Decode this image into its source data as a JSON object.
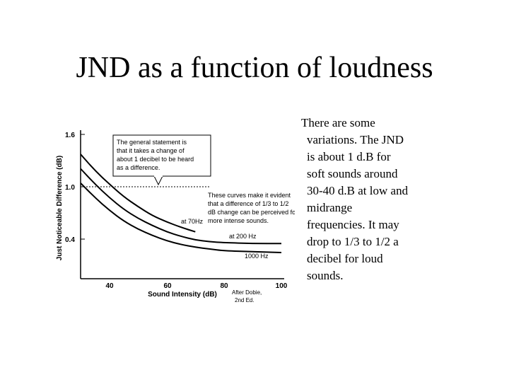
{
  "slide": {
    "title": "JND as a function of loudness",
    "body_lines": [
      "There are some",
      "variations. The JND",
      "is about 1 d.B for",
      "soft sounds around",
      "30-40 d.B at low and",
      "midrange",
      "frequencies. It may",
      "drop to 1/3 to 1/2 a",
      "decibel for loud",
      "sounds."
    ]
  },
  "chart_data": {
    "type": "line",
    "xlabel": "Sound Intensity (dB)",
    "ylabel": "Just Noticeable Difference (dB)",
    "xlim": [
      30,
      100
    ],
    "ylim": [
      0,
      1.6
    ],
    "xticks": [
      "40",
      "60",
      "80",
      "100"
    ],
    "yticks": [
      "1.6",
      "1.0",
      "0.4"
    ],
    "grid": false,
    "source": [
      "After Dobie,",
      "2nd Ed."
    ],
    "series": [
      {
        "name": "at 70Hz",
        "x": [
          30,
          35,
          40,
          45,
          50,
          55,
          60,
          65,
          70
        ],
        "y": [
          1.38,
          1.2,
          1.05,
          0.91,
          0.8,
          0.7,
          0.63,
          0.57,
          0.52
        ]
      },
      {
        "name": "at 200 Hz",
        "x": [
          30,
          35,
          40,
          45,
          50,
          55,
          60,
          65,
          70,
          75,
          80,
          90,
          100
        ],
        "y": [
          1.22,
          1.05,
          0.9,
          0.77,
          0.67,
          0.59,
          0.52,
          0.47,
          0.43,
          0.41,
          0.4,
          0.39,
          0.39
        ]
      },
      {
        "name": "1000 Hz",
        "x": [
          30,
          35,
          40,
          45,
          50,
          55,
          60,
          65,
          70,
          75,
          80,
          90,
          100
        ],
        "y": [
          1.06,
          0.9,
          0.76,
          0.64,
          0.55,
          0.48,
          0.42,
          0.38,
          0.35,
          0.33,
          0.31,
          0.3,
          0.29
        ]
      }
    ],
    "annotations": [
      {
        "lines": [
          "The general statement is",
          "that it takes a change of",
          "about 1 decibel to be heard",
          "as a difference."
        ]
      },
      {
        "lines": [
          "These curves make it evident",
          "that a difference of 1/3 to 1/2",
          "dB change can be perceived for",
          "more intense sounds."
        ]
      }
    ],
    "colors": {
      "curve": "#000000",
      "reference_line": "#000000"
    }
  }
}
